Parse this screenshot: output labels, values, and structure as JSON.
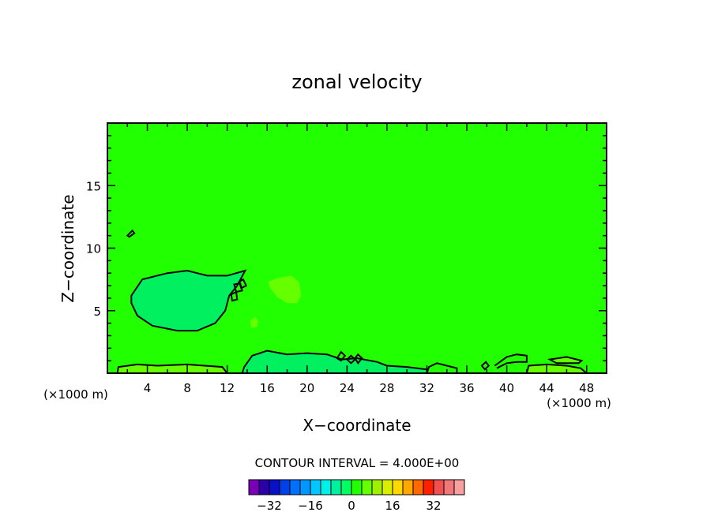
{
  "chart_data": {
    "type": "contour",
    "title": "zonal velocity",
    "xlabel": "X−coordinate",
    "ylabel": "Z−coordinate",
    "x_unit_left": "(×1000 m)",
    "x_unit_right": "(×1000 m)",
    "xlim": [
      0,
      50
    ],
    "ylim": [
      0,
      20
    ],
    "x_ticks": [
      4,
      8,
      12,
      16,
      20,
      24,
      28,
      32,
      36,
      40,
      44,
      48
    ],
    "x_tick_labels": [
      "4",
      "8",
      "12",
      "16",
      "20",
      "24",
      "28",
      "32",
      "36",
      "40",
      "44",
      "48"
    ],
    "y_ticks": [
      5,
      10,
      15
    ],
    "y_tick_labels": [
      "5",
      "10",
      "15"
    ],
    "background_level_color": "#22ff00",
    "contour_interval_text": "CONTOUR INTERVAL = 4.000E+00",
    "colorbar": {
      "colors": [
        "#7a00b8",
        "#2c00a8",
        "#0a10c8",
        "#0040e8",
        "#0070ff",
        "#0098ff",
        "#00c8ff",
        "#00f0e8",
        "#00f0a0",
        "#00ff60",
        "#22ff00",
        "#66ff00",
        "#a0f000",
        "#d8f000",
        "#ffd800",
        "#ffa800",
        "#ff6a00",
        "#ff2000",
        "#f05050",
        "#f07878",
        "#f8a0a0"
      ],
      "tick_values": [
        -32,
        -16,
        0,
        16,
        32
      ],
      "tick_labels": [
        "−32",
        "−16",
        "0",
        "16",
        "32"
      ],
      "min": -40,
      "max": 44
    },
    "features": [
      {
        "kind": "negative_region",
        "color": "#00f060",
        "polygon": [
          [
            2.4,
            6.2
          ],
          [
            3.5,
            7.5
          ],
          [
            6,
            8.0
          ],
          [
            8,
            8.2
          ],
          [
            10,
            7.8
          ],
          [
            12,
            7.8
          ],
          [
            13.8,
            8.2
          ],
          [
            13,
            7
          ],
          [
            12.2,
            6.2
          ],
          [
            11.8,
            5
          ],
          [
            10.8,
            4.0
          ],
          [
            9,
            3.4
          ],
          [
            7,
            3.4
          ],
          [
            4.5,
            3.8
          ],
          [
            3,
            4.6
          ],
          [
            2.4,
            5.6
          ]
        ]
      },
      {
        "kind": "negative_region",
        "color": "#00f060",
        "polygon": [
          [
            13.7,
            0.5
          ],
          [
            14.5,
            1.4
          ],
          [
            16,
            1.8
          ],
          [
            18,
            1.5
          ],
          [
            20,
            1.6
          ],
          [
            22,
            1.5
          ],
          [
            23.5,
            1.1
          ],
          [
            25,
            1.2
          ],
          [
            27,
            0.9
          ],
          [
            28,
            0.6
          ],
          [
            30,
            0.5
          ],
          [
            32,
            0.3
          ],
          [
            32,
            0
          ],
          [
            13.5,
            0
          ]
        ]
      },
      {
        "kind": "positive_region",
        "color": "#66ff00",
        "polygon": [
          [
            16.1,
            7.3
          ],
          [
            17,
            7.6
          ],
          [
            18.4,
            7.8
          ],
          [
            19.2,
            7.3
          ],
          [
            19.4,
            6.2
          ],
          [
            19,
            5.6
          ],
          [
            18,
            5.6
          ],
          [
            17,
            6.1
          ],
          [
            16.3,
            6.8
          ]
        ]
      },
      {
        "kind": "positive_region",
        "color": "#66ff00",
        "polygon": [
          [
            14.3,
            4.2
          ],
          [
            14.8,
            4.5
          ],
          [
            15.1,
            4.2
          ],
          [
            15,
            3.7
          ],
          [
            14.4,
            3.6
          ]
        ]
      },
      {
        "kind": "positive_region",
        "color": "#66ff00",
        "polygon": [
          [
            1,
            0.5
          ],
          [
            3,
            0.7
          ],
          [
            5,
            0.6
          ],
          [
            8,
            0.7
          ],
          [
            11.5,
            0.5
          ],
          [
            12,
            0.2
          ],
          [
            12,
            0
          ],
          [
            1,
            0
          ]
        ]
      },
      {
        "kind": "positive_region",
        "color": "#66ff00",
        "polygon": [
          [
            44.3,
            1.1
          ],
          [
            46,
            1.3
          ],
          [
            47.5,
            1.0
          ],
          [
            47.2,
            0.8
          ],
          [
            45,
            0.8
          ]
        ]
      },
      {
        "kind": "positive_region",
        "color": "#66ff00",
        "polygon": [
          [
            42.2,
            0.6
          ],
          [
            44,
            0.7
          ],
          [
            46,
            0.6
          ],
          [
            47.4,
            0.4
          ],
          [
            48,
            0.1
          ],
          [
            48,
            0
          ],
          [
            42,
            0
          ],
          [
            42,
            0.3
          ]
        ]
      },
      {
        "kind": "contour",
        "closed": true,
        "points": [
          [
            2.4,
            6.2
          ],
          [
            3.5,
            7.5
          ],
          [
            6,
            8.0
          ],
          [
            8,
            8.2
          ],
          [
            10,
            7.8
          ],
          [
            12,
            7.8
          ],
          [
            13.8,
            8.2
          ],
          [
            13,
            7
          ],
          [
            12.2,
            6.2
          ],
          [
            11.8,
            5
          ],
          [
            10.8,
            4.0
          ],
          [
            9,
            3.4
          ],
          [
            7,
            3.4
          ],
          [
            4.5,
            3.8
          ],
          [
            3,
            4.6
          ],
          [
            2.4,
            5.6
          ]
        ]
      },
      {
        "kind": "contour",
        "closed": true,
        "points": [
          [
            2,
            11.0
          ],
          [
            2.5,
            11.4
          ],
          [
            2.7,
            11.2
          ],
          [
            2.2,
            10.9
          ]
        ]
      },
      {
        "kind": "contour",
        "closed": true,
        "points": [
          [
            12.4,
            6.3
          ],
          [
            12.9,
            6.5
          ],
          [
            13.0,
            5.9
          ],
          [
            12.5,
            5.8
          ]
        ]
      },
      {
        "kind": "contour",
        "closed": true,
        "points": [
          [
            12.7,
            7.1
          ],
          [
            13.3,
            7.2
          ],
          [
            13.5,
            6.6
          ],
          [
            12.9,
            6.5
          ]
        ]
      },
      {
        "kind": "contour",
        "closed": true,
        "points": [
          [
            13.2,
            7.3
          ],
          [
            13.6,
            7.5
          ],
          [
            13.9,
            7.0
          ],
          [
            13.4,
            6.8
          ]
        ]
      },
      {
        "kind": "contour",
        "closed": false,
        "points": [
          [
            13.5,
            0
          ],
          [
            13.7,
            0.5
          ],
          [
            14.5,
            1.4
          ],
          [
            16,
            1.8
          ],
          [
            18,
            1.5
          ],
          [
            20,
            1.6
          ],
          [
            22,
            1.5
          ],
          [
            23.5,
            1.1
          ],
          [
            25,
            1.2
          ],
          [
            27,
            0.9
          ],
          [
            28,
            0.6
          ],
          [
            30,
            0.5
          ],
          [
            32,
            0.3
          ],
          [
            32,
            0
          ]
        ]
      },
      {
        "kind": "contour",
        "closed": true,
        "points": [
          [
            23,
            1.2
          ],
          [
            23.4,
            1.7
          ],
          [
            23.8,
            1.4
          ],
          [
            23.4,
            1.0
          ]
        ]
      },
      {
        "kind": "contour",
        "closed": true,
        "points": [
          [
            24,
            1.1
          ],
          [
            24.4,
            1.4
          ],
          [
            24.8,
            1.1
          ],
          [
            24.4,
            0.8
          ]
        ]
      },
      {
        "kind": "contour",
        "closed": true,
        "points": [
          [
            24.8,
            1.2
          ],
          [
            25.1,
            1.5
          ],
          [
            25.5,
            1.2
          ],
          [
            25.1,
            0.8
          ]
        ]
      },
      {
        "kind": "contour",
        "closed": false,
        "points": [
          [
            32,
            0
          ],
          [
            32.2,
            0.5
          ],
          [
            33,
            0.8
          ],
          [
            34,
            0.6
          ],
          [
            35,
            0.4
          ],
          [
            35,
            0
          ]
        ]
      },
      {
        "kind": "contour",
        "closed": true,
        "points": [
          [
            37.5,
            0.6
          ],
          [
            37.9,
            0.9
          ],
          [
            38.2,
            0.6
          ],
          [
            37.8,
            0.3
          ]
        ]
      },
      {
        "kind": "contour",
        "closed": false,
        "points": [
          [
            38.8,
            0.6
          ],
          [
            40,
            1.3
          ],
          [
            41,
            1.5
          ],
          [
            42,
            1.4
          ],
          [
            42,
            0.9
          ],
          [
            41,
            0.9
          ],
          [
            40,
            0.8
          ],
          [
            39,
            0.4
          ]
        ]
      },
      {
        "kind": "contour",
        "closed": true,
        "points": [
          [
            44.3,
            1.1
          ],
          [
            46,
            1.3
          ],
          [
            47.5,
            1.0
          ],
          [
            47.2,
            0.8
          ],
          [
            45,
            0.8
          ]
        ]
      },
      {
        "kind": "contour",
        "closed": false,
        "points": [
          [
            1,
            0
          ],
          [
            1.1,
            0.5
          ],
          [
            3,
            0.7
          ],
          [
            5,
            0.6
          ],
          [
            8,
            0.7
          ],
          [
            11.5,
            0.5
          ],
          [
            12,
            0
          ]
        ]
      },
      {
        "kind": "contour",
        "closed": false,
        "points": [
          [
            42,
            0
          ],
          [
            42.2,
            0.6
          ],
          [
            44,
            0.7
          ],
          [
            46,
            0.6
          ],
          [
            47.4,
            0.4
          ],
          [
            48,
            0
          ]
        ]
      }
    ]
  }
}
